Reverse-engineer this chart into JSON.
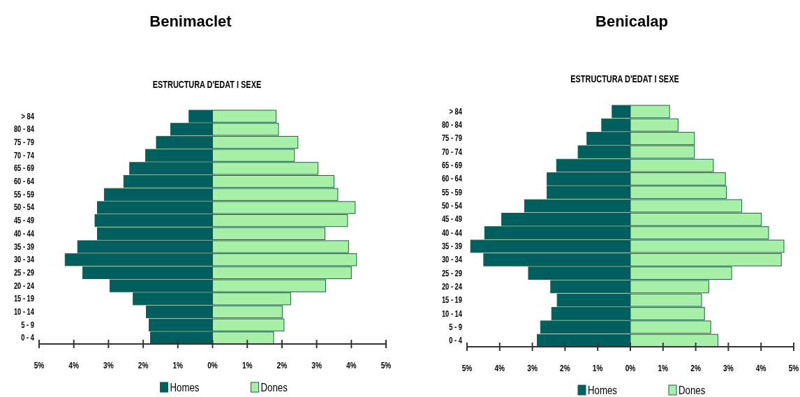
{
  "chart_data": [
    {
      "type": "bar",
      "orientation": "horizontal",
      "stacked": true,
      "title": "Benimaclet",
      "subtitle": "ESTRUCTURA D'EDAT I SEXE",
      "categories": [
        "> 84",
        "80 - 84",
        "75 - 79",
        "70 - 74",
        "65 - 69",
        "60 - 64",
        "55 - 59",
        "50 - 54",
        "45 - 49",
        "40 - 44",
        "35 - 39",
        "30 - 34",
        "25 - 29",
        "20 - 24",
        "15 - 19",
        "10 - 14",
        "5 - 9",
        "0 - 4"
      ],
      "series": [
        {
          "name": "Homes",
          "color": "#006060",
          "values": [
            -0.68,
            -1.21,
            -1.62,
            -1.93,
            -2.39,
            -2.56,
            -3.12,
            -3.32,
            -3.39,
            -3.32,
            -3.89,
            -4.25,
            -3.74,
            -2.96,
            -2.29,
            -1.91,
            -1.83,
            -1.79
          ]
        },
        {
          "name": "Dones",
          "color": "#a8f0a8",
          "values": [
            1.83,
            1.9,
            2.46,
            2.36,
            3.04,
            3.5,
            3.61,
            4.11,
            3.89,
            3.24,
            3.92,
            4.15,
            4.0,
            3.26,
            2.25,
            2.01,
            2.06,
            1.76
          ]
        }
      ],
      "xlim": [
        -5,
        5
      ],
      "xticks": [
        {
          "value": -5,
          "label": "5%"
        },
        {
          "value": -4,
          "label": "4%"
        },
        {
          "value": -3,
          "label": "3%"
        },
        {
          "value": -2,
          "label": "2%"
        },
        {
          "value": -1,
          "label": "1%"
        },
        {
          "value": 0,
          "label": "0%"
        },
        {
          "value": 1,
          "label": "1%"
        },
        {
          "value": 2,
          "label": "2%"
        },
        {
          "value": 3,
          "label": "3%"
        },
        {
          "value": 4,
          "label": "4%"
        },
        {
          "value": 5,
          "label": "5%"
        }
      ],
      "grid": false,
      "legend": "bottom"
    },
    {
      "type": "bar",
      "orientation": "horizontal",
      "stacked": true,
      "title": "Benicalap",
      "subtitle": "ESTRUCTURA D'EDAT I SEXE",
      "categories": [
        "> 84",
        "80 - 84",
        "75 - 79",
        "70 - 74",
        "65 - 69",
        "60 - 64",
        "55 - 59",
        "50 - 54",
        "45 - 49",
        "40 - 44",
        "35 - 39",
        "30 - 34",
        "25 - 29",
        "20 - 24",
        "15 - 19",
        "10 - 14",
        "5 - 9",
        "0 - 4"
      ],
      "series": [
        {
          "name": "Homes",
          "color": "#006060",
          "values": [
            -0.56,
            -0.88,
            -1.33,
            -1.6,
            -2.26,
            -2.55,
            -2.55,
            -3.24,
            -3.94,
            -4.46,
            -4.89,
            -4.49,
            -3.12,
            -2.44,
            -2.24,
            -2.41,
            -2.75,
            -2.85
          ]
        },
        {
          "name": "Dones",
          "color": "#a8f0a8",
          "values": [
            1.2,
            1.46,
            1.96,
            1.96,
            2.54,
            2.91,
            2.94,
            3.41,
            4.01,
            4.23,
            4.7,
            4.62,
            3.1,
            2.4,
            2.18,
            2.27,
            2.46,
            2.68
          ]
        }
      ],
      "xlim": [
        -5,
        5
      ],
      "xticks": [
        {
          "value": -5,
          "label": "5%"
        },
        {
          "value": -4,
          "label": "4%"
        },
        {
          "value": -3,
          "label": "3%"
        },
        {
          "value": -2,
          "label": "2%"
        },
        {
          "value": -1,
          "label": "1%"
        },
        {
          "value": 0,
          "label": "0%"
        },
        {
          "value": 1,
          "label": "1%"
        },
        {
          "value": 2,
          "label": "2%"
        },
        {
          "value": 3,
          "label": "3%"
        },
        {
          "value": 4,
          "label": "4%"
        },
        {
          "value": 5,
          "label": "5%"
        }
      ],
      "grid": false,
      "legend": "bottom"
    }
  ]
}
